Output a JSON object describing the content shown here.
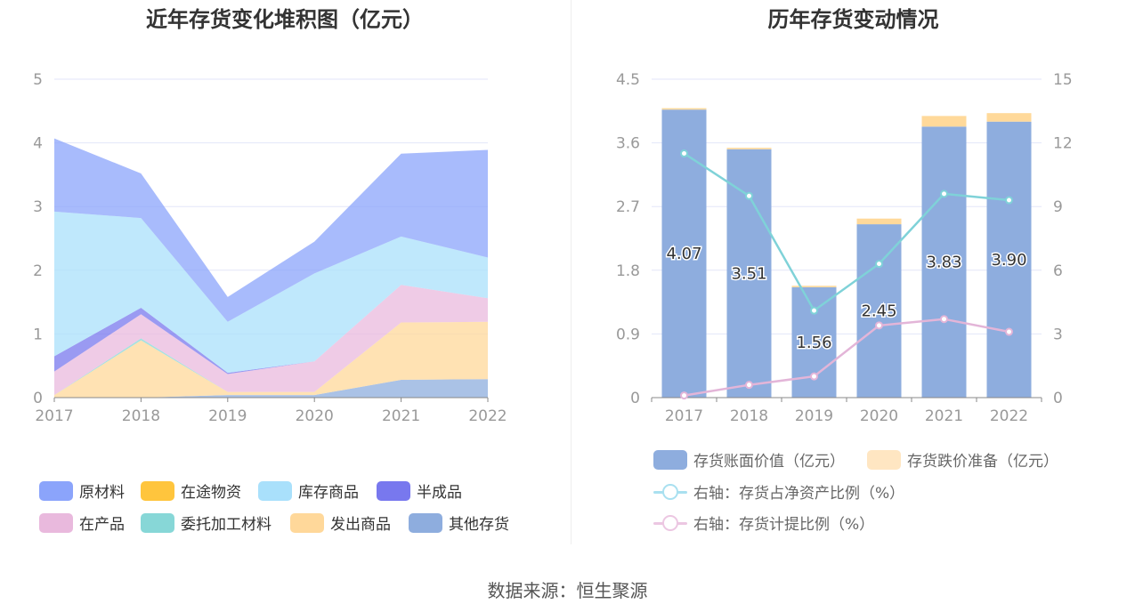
{
  "left_chart": {
    "title": "近年存货变化堆积图（亿元）",
    "legend": [
      {
        "name": "原材料",
        "color": "#8ba4fb"
      },
      {
        "name": "在途物资",
        "color": "#ffc53d"
      },
      {
        "name": "库存商品",
        "color": "#a9e0fb"
      },
      {
        "name": "半成品",
        "color": "#7878ee"
      },
      {
        "name": "在产品",
        "color": "#e9b9dd"
      },
      {
        "name": "委托加工材料",
        "color": "#87d7d7"
      },
      {
        "name": "发出商品",
        "color": "#ffd89a"
      },
      {
        "name": "其他存货",
        "color": "#8eadde"
      }
    ]
  },
  "right_chart": {
    "title": "历年存货变动情况",
    "legend": [
      {
        "name": "存货账面价值（亿元）",
        "color": "#8eadde",
        "kind": "bar"
      },
      {
        "name": "存货跌价准备（亿元）",
        "color": "#ffe6c2",
        "kind": "bar"
      },
      {
        "name": "右轴：存货占净资产比例（%）",
        "color": "#a9e0f0",
        "kind": "line"
      },
      {
        "name": "右轴：存货计提比例（%）",
        "color": "#ecc7e2",
        "kind": "line"
      }
    ]
  },
  "chart_data": [
    {
      "type": "area",
      "stacked": true,
      "title": "近年存货变化堆积图（亿元）",
      "x": [
        "2017",
        "2018",
        "2019",
        "2020",
        "2021",
        "2022"
      ],
      "ylim": [
        0,
        5
      ],
      "yticks": [
        0,
        1,
        2,
        3,
        4,
        5
      ],
      "series": [
        {
          "name": "其他存货",
          "values": [
            0,
            0,
            0.04,
            0.04,
            0.28,
            0.29
          ]
        },
        {
          "name": "发出商品",
          "values": [
            0.04,
            0.9,
            0.05,
            0.05,
            0.9,
            0.9
          ]
        },
        {
          "name": "委托加工材料",
          "values": [
            0,
            0.03,
            0,
            0,
            0,
            0
          ]
        },
        {
          "name": "在产品",
          "values": [
            0.37,
            0.38,
            0.28,
            0.48,
            0.59,
            0.37
          ]
        },
        {
          "name": "半成品",
          "values": [
            0.24,
            0.1,
            0.02,
            0,
            0,
            0
          ]
        },
        {
          "name": "库存商品",
          "values": [
            2.27,
            1.41,
            0.8,
            1.38,
            0.76,
            0.64
          ]
        },
        {
          "name": "在途物资",
          "values": [
            0,
            0,
            0,
            0,
            0,
            0
          ]
        },
        {
          "name": "原材料",
          "values": [
            1.15,
            0.7,
            0.39,
            0.5,
            1.3,
            1.69
          ]
        }
      ]
    },
    {
      "type": "bar",
      "title": "历年存货变动情况",
      "categories": [
        "2017",
        "2018",
        "2019",
        "2020",
        "2021",
        "2022"
      ],
      "ylim": [
        0,
        4.5
      ],
      "yticks": [
        "0",
        "0.9",
        "1.8",
        "2.7",
        "3.6",
        "4.5"
      ],
      "y2lim": [
        0,
        15
      ],
      "y2ticks": [
        "0",
        "3",
        "6",
        "9",
        "12",
        "15"
      ],
      "series": [
        {
          "name": "存货账面价值（亿元）",
          "values": [
            4.07,
            3.51,
            1.56,
            2.45,
            3.83,
            3.9
          ],
          "labels": [
            "4.07",
            "3.51",
            "1.56",
            "2.45",
            "3.83",
            "3.90"
          ]
        },
        {
          "name": "存货跌价准备（亿元）",
          "values": [
            0.02,
            0.02,
            0.02,
            0.08,
            0.15,
            0.12
          ]
        },
        {
          "name": "右轴：存货占净资产比例（%）",
          "axis": "right",
          "type": "line",
          "values": [
            11.5,
            9.5,
            4.1,
            6.3,
            9.6,
            9.3
          ]
        },
        {
          "name": "右轴：存货计提比例（%）",
          "axis": "right",
          "type": "line",
          "values": [
            0.1,
            0.6,
            1.0,
            3.4,
            3.7,
            3.1
          ]
        }
      ]
    }
  ],
  "source": "数据来源：恒生聚源"
}
